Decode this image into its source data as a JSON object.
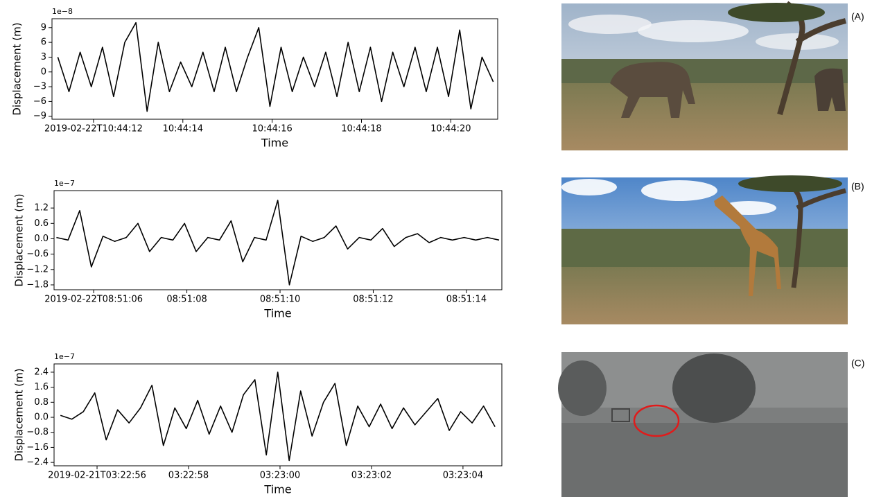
{
  "chart_data": [
    {
      "type": "line",
      "offset_label": "1e−8",
      "ylabel": "Displacement (m)",
      "xlabel": "Time",
      "color": "#000000",
      "x": [
        11.2,
        11.45,
        11.7,
        11.95,
        12.2,
        12.45,
        12.7,
        12.95,
        13.2,
        13.45,
        13.7,
        13.95,
        14.2,
        14.45,
        14.7,
        14.95,
        15.2,
        15.45,
        15.7,
        15.95,
        16.2,
        16.45,
        16.7,
        16.95,
        17.2,
        17.45,
        17.7,
        17.95,
        18.2,
        18.45,
        18.7,
        18.95,
        19.2,
        19.45,
        19.7,
        19.95,
        20.2,
        20.45,
        20.7,
        20.95
      ],
      "values": [
        3,
        -4,
        4,
        -3,
        5,
        -5,
        6,
        10,
        -8,
        6,
        -4,
        2,
        -3,
        4,
        -4,
        5,
        -4,
        3,
        9,
        -7,
        5,
        -4,
        3,
        -3,
        4,
        -5,
        6,
        -4,
        5,
        -6,
        4,
        -3,
        5,
        -4,
        5,
        -5,
        8.5,
        -7.5,
        3,
        -2
      ],
      "xlim": [
        11.07,
        21.05
      ],
      "ylim": [
        -9.6,
        10.8
      ],
      "xticks": [
        {
          "value": 12,
          "label": "2019-02-22T10:44:12"
        },
        {
          "value": 14,
          "label": "10:44:14"
        },
        {
          "value": 16,
          "label": "10:44:16"
        },
        {
          "value": 18,
          "label": "10:44:18"
        },
        {
          "value": 20,
          "label": "10:44:20"
        }
      ],
      "yticks": [
        {
          "value": -9,
          "label": "−9"
        },
        {
          "value": -6,
          "label": "−6"
        },
        {
          "value": -3,
          "label": "−3"
        },
        0,
        3,
        6,
        9
      ]
    },
    {
      "type": "line",
      "offset_label": "1e−7",
      "ylabel": "Displacement (m)",
      "xlabel": "Time",
      "color": "#000000",
      "x": [
        5.2,
        5.45,
        5.7,
        5.95,
        6.2,
        6.45,
        6.7,
        6.95,
        7.2,
        7.45,
        7.7,
        7.95,
        8.2,
        8.45,
        8.7,
        8.95,
        9.2,
        9.45,
        9.7,
        9.95,
        10.2,
        10.45,
        10.7,
        10.95,
        11.2,
        11.45,
        11.7,
        11.95,
        12.2,
        12.45,
        12.7,
        12.95,
        13.2,
        13.45,
        13.7,
        13.95,
        14.2,
        14.45,
        14.7
      ],
      "values": [
        0.05,
        -0.05,
        1.1,
        -1.1,
        0.1,
        -0.1,
        0.05,
        0.6,
        -0.5,
        0.05,
        -0.05,
        0.6,
        -0.5,
        0.05,
        -0.05,
        0.7,
        -0.9,
        0.05,
        -0.05,
        1.5,
        -1.8,
        0.1,
        -0.1,
        0.05,
        0.5,
        -0.4,
        0.05,
        -0.05,
        0.4,
        -0.3,
        0.05,
        0.2,
        -0.15,
        0.05,
        -0.05,
        0.05,
        -0.05,
        0.05,
        -0.05
      ],
      "xlim": [
        5.15,
        14.76
      ],
      "ylim": [
        -1.99,
        1.88
      ],
      "xticks": [
        {
          "value": 6,
          "label": "2019-02-22T08:51:06"
        },
        {
          "value": 8,
          "label": "08:51:08"
        },
        {
          "value": 10,
          "label": "08:51:10"
        },
        {
          "value": 12,
          "label": "08:51:12"
        },
        {
          "value": 14,
          "label": "08:51:14"
        }
      ],
      "yticks": [
        {
          "value": -1.8,
          "label": "−1.8"
        },
        {
          "value": -1.2,
          "label": "−1.2"
        },
        {
          "value": -0.6,
          "label": "−0.6"
        },
        {
          "value": 0,
          "label": "0.0"
        },
        0.6,
        1.2
      ]
    },
    {
      "type": "line",
      "offset_label": "1e−7",
      "ylabel": "Displacement (m)",
      "xlabel": "Time",
      "color": "#000000",
      "x": [
        55.2,
        55.45,
        55.7,
        55.95,
        56.2,
        56.45,
        56.7,
        56.95,
        57.2,
        57.45,
        57.7,
        57.95,
        58.2,
        58.45,
        58.7,
        58.95,
        59.2,
        59.45,
        59.7,
        59.95,
        60.2,
        60.45,
        60.7,
        60.95,
        61.2,
        61.45,
        61.7,
        61.95,
        62.2,
        62.45,
        62.7,
        62.95,
        63.2,
        63.45,
        63.7,
        63.95,
        64.2,
        64.45,
        64.7
      ],
      "values": [
        0.1,
        -0.1,
        0.3,
        1.3,
        -1.2,
        0.4,
        -0.3,
        0.5,
        1.7,
        -1.5,
        0.5,
        -0.6,
        0.9,
        -0.9,
        0.6,
        -0.8,
        1.2,
        2.0,
        -2.0,
        2.4,
        -2.3,
        1.4,
        -1.0,
        0.8,
        1.8,
        -1.5,
        0.6,
        -0.5,
        0.7,
        -0.6,
        0.5,
        -0.4,
        0.3,
        1.0,
        -0.7,
        0.3,
        -0.3,
        0.6,
        -0.5
      ],
      "xlim": [
        55.06,
        64.85
      ],
      "ylim": [
        -2.58,
        2.84
      ],
      "xticks": [
        {
          "value": 56,
          "label": "2019-02-21T03:22:56"
        },
        {
          "value": 58,
          "label": "03:22:58"
        },
        {
          "value": 60,
          "label": "03:23:00"
        },
        {
          "value": 62,
          "label": "03:23:02"
        },
        {
          "value": 64,
          "label": "03:23:04"
        }
      ],
      "yticks": [
        {
          "value": -2.4,
          "label": "−2.4"
        },
        {
          "value": -1.6,
          "label": "−1.6"
        },
        {
          "value": -0.8,
          "label": "−0.8"
        },
        {
          "value": 0,
          "label": "0.0"
        },
        0.8,
        1.6,
        2.4
      ]
    }
  ],
  "photo_labels": [
    "(A)",
    "(B)",
    "(C)"
  ]
}
